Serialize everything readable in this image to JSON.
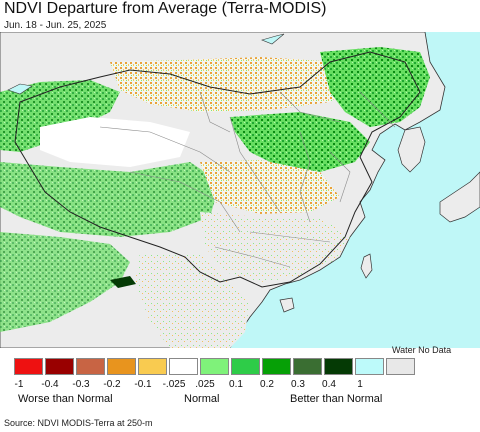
{
  "header": {
    "title": "NDVI Departure from Average (Terra-MODIS)",
    "date_range": "Jun. 18 - Jun. 25, 2025"
  },
  "map": {
    "colors": {
      "ocean": "#bff7f7",
      "land_no_data": "#ececec",
      "normal": "#ffffff",
      "border": "#333333",
      "province": "#8a8a8a",
      "green_light": "#80ee7a",
      "green_mid": "#2cc24c",
      "green_dark": "#089c08",
      "brown": "#e8a23a",
      "yellow": "#f6cd55"
    }
  },
  "legend": {
    "special_label": "Water No Data",
    "swatches": [
      {
        "color": "#ee1111"
      },
      {
        "color": "#990000"
      },
      {
        "color": "#c86444"
      },
      {
        "color": "#e8941e"
      },
      {
        "color": "#f9cb50"
      },
      {
        "color": "#ffffff"
      },
      {
        "color": "#7ff27a"
      },
      {
        "color": "#2ecc48"
      },
      {
        "color": "#06a006"
      },
      {
        "color": "#3a6e32"
      },
      {
        "color": "#053a05"
      },
      {
        "color": "#bdfafa"
      },
      {
        "color": "#e8e8e8"
      }
    ],
    "ticks": [
      "-1",
      "-0.4",
      "-0.3",
      "-0.2",
      "-0.1",
      "-.025",
      ".025",
      "0.1",
      "0.2",
      "0.3",
      "0.4",
      "1"
    ],
    "groups": {
      "worse": "Worse than Normal",
      "normal": "Normal",
      "better": "Better than Normal"
    }
  },
  "footer": {
    "source": "Source: NDVI MODIS-Terra at 250-m"
  }
}
